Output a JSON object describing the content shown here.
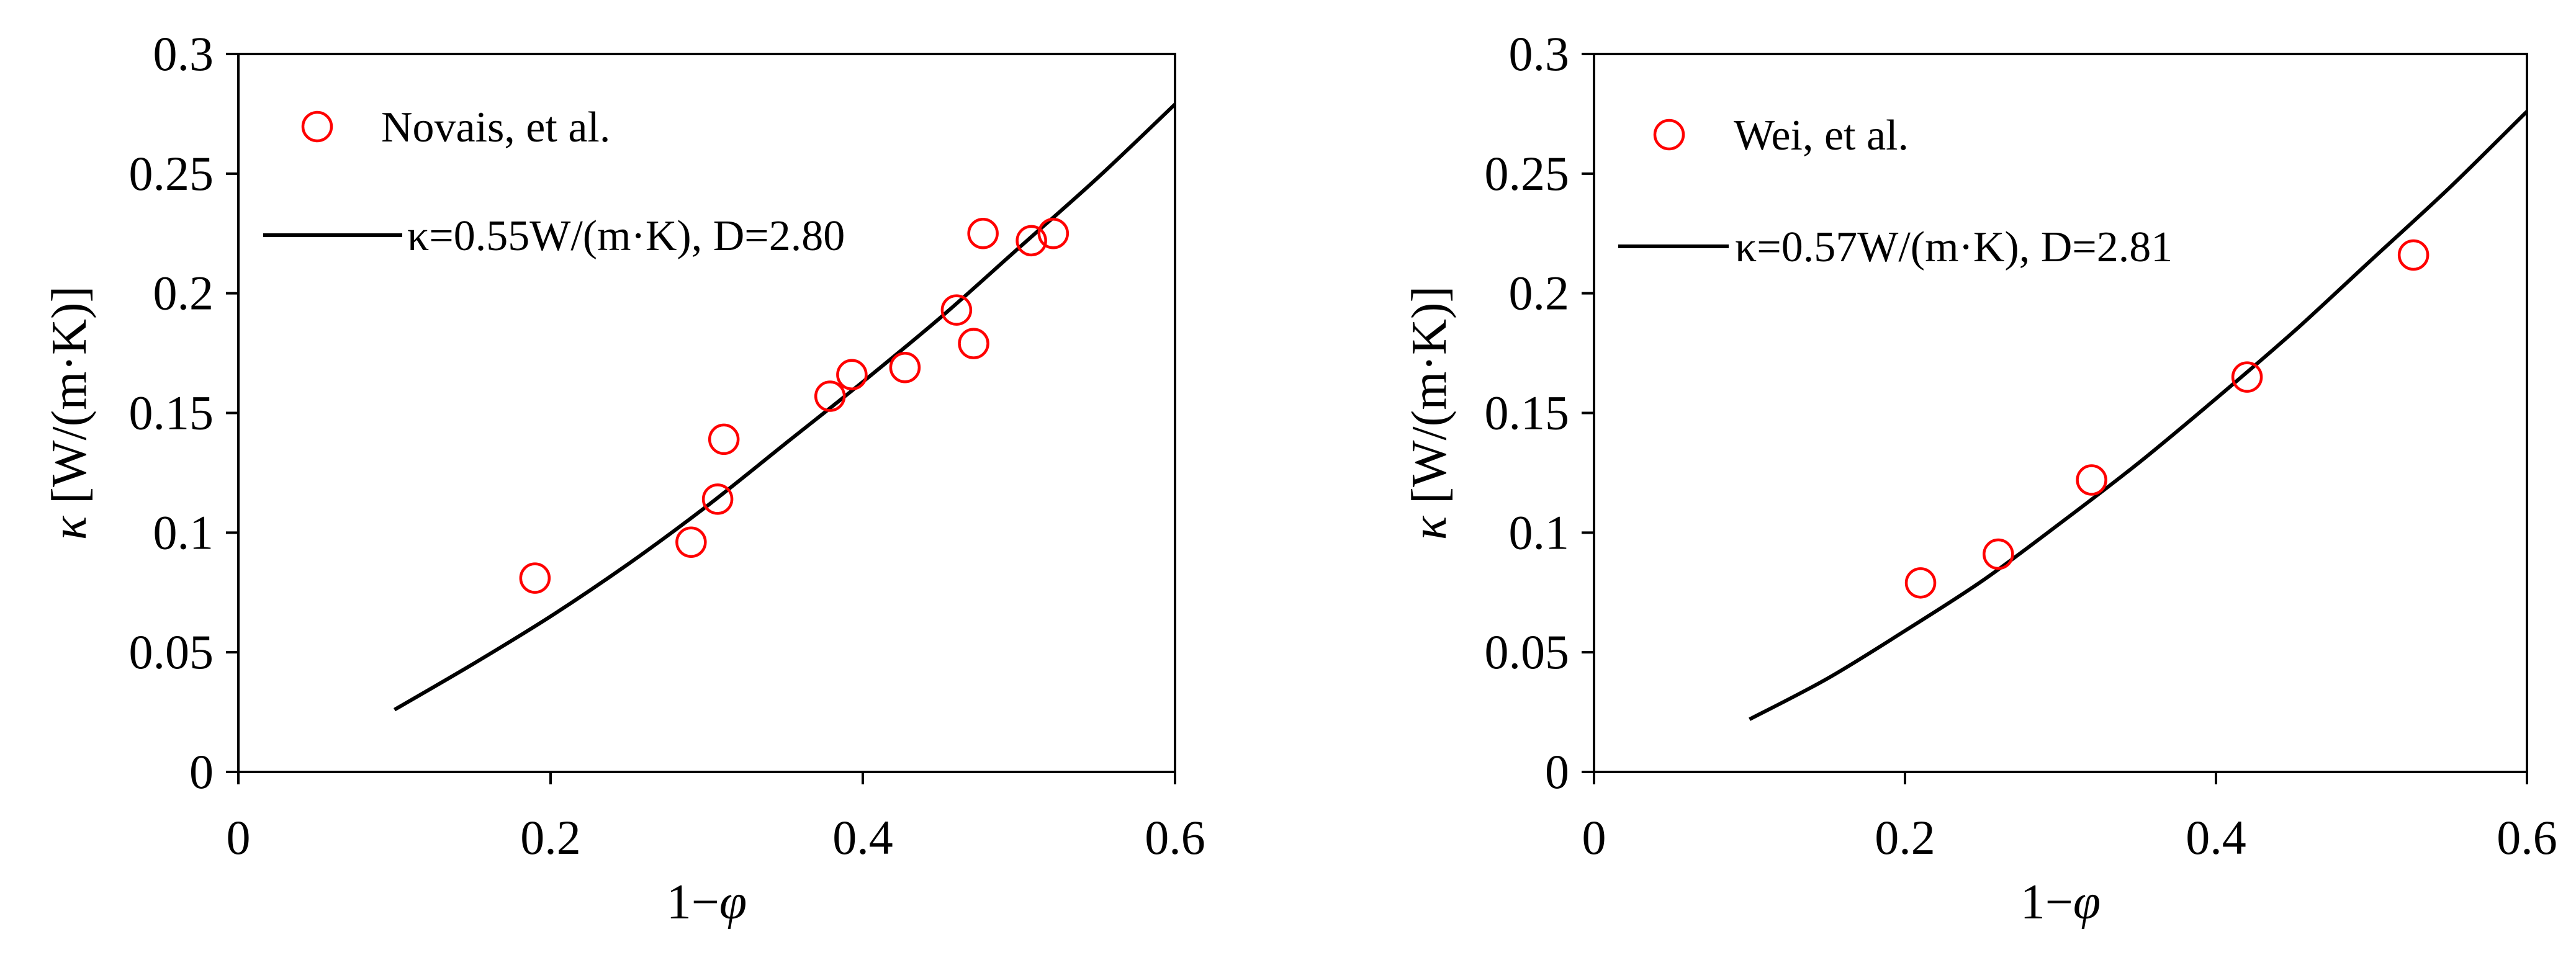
{
  "chart_data": [
    {
      "type": "scatter",
      "xlabel": "1−φ",
      "ylabel": "κ [W/(m·K)]",
      "xlim": [
        0,
        0.6
      ],
      "ylim": [
        0,
        0.3
      ],
      "x_ticks": [
        0,
        0.2,
        0.4,
        0.6
      ],
      "x_tick_labels": [
        "0",
        "0.2",
        "0.4",
        "0.6"
      ],
      "y_ticks": [
        0,
        0.05,
        0.1,
        0.15,
        0.2,
        0.25,
        0.3
      ],
      "y_tick_labels": [
        "0",
        "0.05",
        "0.1",
        "0.15",
        "0.2",
        "0.25",
        "0.3"
      ],
      "grid": false,
      "legend_position": "top-left",
      "series": [
        {
          "name": "Novais, et al.",
          "kind": "scatter",
          "marker": "open-circle",
          "color": "#ff0000",
          "x": [
            0.19,
            0.29,
            0.307,
            0.311,
            0.379,
            0.393,
            0.427,
            0.46,
            0.471,
            0.477,
            0.508,
            0.522
          ],
          "y": [
            0.081,
            0.096,
            0.114,
            0.139,
            0.157,
            0.166,
            0.169,
            0.193,
            0.179,
            0.225,
            0.222,
            0.225
          ]
        },
        {
          "name": "κ=0.55W/(m·K), D=2.80",
          "kind": "line",
          "color": "#000000",
          "x": [
            0.1,
            0.15,
            0.2,
            0.25,
            0.3,
            0.35,
            0.4,
            0.45,
            0.5,
            0.55,
            0.6
          ],
          "y": [
            0.026,
            0.045,
            0.065,
            0.087,
            0.111,
            0.137,
            0.163,
            0.19,
            0.219,
            0.248,
            0.279
          ]
        }
      ]
    },
    {
      "type": "scatter",
      "xlabel": "1−φ",
      "ylabel": "κ [W/(m·K)]",
      "xlim": [
        0,
        0.6
      ],
      "ylim": [
        0,
        0.3
      ],
      "x_ticks": [
        0,
        0.2,
        0.4,
        0.6
      ],
      "x_tick_labels": [
        "0",
        "0.2",
        "0.4",
        "0.6"
      ],
      "y_ticks": [
        0,
        0.05,
        0.1,
        0.15,
        0.2,
        0.25,
        0.3
      ],
      "y_tick_labels": [
        "0",
        "0.05",
        "0.1",
        "0.15",
        "0.2",
        "0.25",
        "0.3"
      ],
      "grid": false,
      "legend_position": "top-left",
      "series": [
        {
          "name": "Wei, et al.",
          "kind": "scatter",
          "marker": "open-circle",
          "color": "#ff0000",
          "x": [
            0.21,
            0.26,
            0.32,
            0.42,
            0.527
          ],
          "y": [
            0.079,
            0.091,
            0.122,
            0.165,
            0.216
          ]
        },
        {
          "name": "κ=0.57W/(m·K), D=2.81",
          "kind": "line",
          "color": "#000000",
          "x": [
            0.1,
            0.15,
            0.2,
            0.25,
            0.3,
            0.35,
            0.4,
            0.45,
            0.5,
            0.55,
            0.6
          ],
          "y": [
            0.022,
            0.039,
            0.059,
            0.08,
            0.104,
            0.129,
            0.156,
            0.184,
            0.214,
            0.244,
            0.276
          ]
        }
      ]
    }
  ]
}
